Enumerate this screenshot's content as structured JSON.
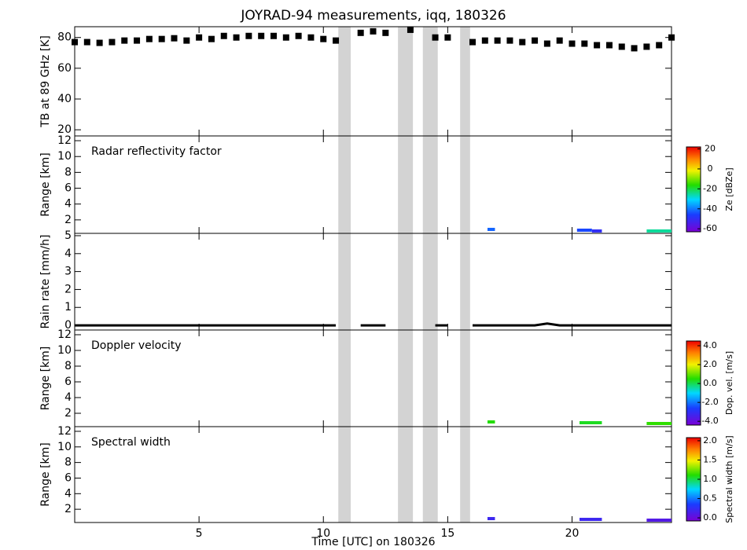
{
  "chart_data": [
    {
      "type": "scatter",
      "title": "JOYRAD-94 measurements, iqq, 180326",
      "ylabel": "TB at 89 GHz [K]",
      "color": "#000000",
      "ylim": [
        16,
        87
      ],
      "yticks": [
        20,
        40,
        60,
        80
      ],
      "gaps": [
        [
          10.6,
          11.1
        ],
        [
          13.0,
          13.6
        ],
        [
          14.0,
          14.6
        ],
        [
          15.5,
          15.9
        ]
      ],
      "x": [
        0,
        0.5,
        1,
        1.5,
        2,
        2.5,
        3,
        3.5,
        4,
        4.5,
        5,
        5.5,
        6,
        6.5,
        7,
        7.5,
        8,
        8.5,
        9,
        9.5,
        10,
        10.5,
        11,
        11.5,
        12,
        12.5,
        13,
        13.5,
        14,
        14.5,
        15,
        15.5,
        16,
        16.5,
        17,
        17.5,
        18,
        18.5,
        19,
        19.5,
        20,
        20.5,
        21,
        21.5,
        22,
        22.5,
        23,
        23.5,
        24
      ],
      "values": [
        77,
        77,
        76.5,
        77,
        78,
        78,
        79,
        79,
        79.5,
        78,
        80,
        79,
        81,
        80,
        81,
        81,
        81,
        80,
        81,
        80,
        79,
        78,
        null,
        83,
        84,
        83,
        null,
        85,
        null,
        80,
        80,
        null,
        77,
        78,
        78,
        78,
        77,
        78,
        76,
        78,
        76,
        76,
        75,
        75,
        74,
        73,
        74,
        75,
        80
      ]
    },
    {
      "type": "heatmap",
      "annotation": "Radar reflectivity factor",
      "ylabel": "Range [km]",
      "ylim": [
        0.3,
        12.6
      ],
      "yticks": [
        2,
        4,
        6,
        8,
        10,
        12
      ],
      "colorbar": {
        "label": "Ze [dBZe]",
        "lim": [
          -63,
          22
        ],
        "ticks": [
          20,
          0,
          -20,
          -40,
          -60
        ]
      },
      "cells": [
        {
          "x": [
            16.6,
            16.9
          ],
          "range": 0.8,
          "value": -42
        },
        {
          "x": [
            20.2,
            20.8
          ],
          "range": 0.7,
          "value": -45
        },
        {
          "x": [
            20.8,
            21.2
          ],
          "range": 0.6,
          "value": -50
        },
        {
          "x": [
            23.0,
            24.0
          ],
          "range": 0.6,
          "value": -25
        }
      ]
    },
    {
      "type": "line",
      "ylabel": "Rain rate [mm/h]",
      "color": "#000000",
      "ylim": [
        -0.26,
        5.13
      ],
      "yticks": [
        0,
        1,
        2,
        3,
        4,
        5
      ],
      "x": [
        0,
        0.5,
        1,
        1.5,
        2,
        2.5,
        3,
        3.5,
        4,
        4.5,
        5,
        5.5,
        6,
        6.5,
        7,
        7.5,
        8,
        8.5,
        9,
        9.5,
        10,
        10.5,
        11,
        11.5,
        12,
        12.5,
        13,
        13.5,
        14,
        14.5,
        15,
        15.5,
        16,
        16.5,
        17,
        17.5,
        18,
        18.5,
        19,
        19.5,
        20,
        20.5,
        21,
        21.5,
        22,
        22.5,
        23,
        23.5,
        24
      ],
      "values": [
        0,
        0,
        0,
        0,
        0,
        0,
        0,
        0,
        0,
        0,
        0,
        0,
        0,
        0,
        0,
        0,
        0,
        0,
        0,
        0,
        0,
        0,
        null,
        0,
        0,
        0,
        null,
        0,
        null,
        0,
        0,
        null,
        0,
        0,
        0,
        0,
        0,
        0,
        0.1,
        0,
        0,
        0,
        0,
        0,
        0,
        0,
        0,
        0,
        0
      ]
    },
    {
      "type": "heatmap",
      "annotation": "Doppler velocity",
      "ylabel": "Range [km]",
      "ylim": [
        0.3,
        12.6
      ],
      "yticks": [
        2,
        4,
        6,
        8,
        10,
        12
      ],
      "colorbar": {
        "label": "Dop. vel. [m/s]",
        "lim": [
          -4.4,
          4.5
        ],
        "ticks": [
          {
            "value": 4,
            "label": "4.0"
          },
          {
            "value": 2,
            "label": "2.0"
          },
          {
            "value": 0,
            "label": "0.0"
          },
          {
            "value": -2,
            "label": "-2.0"
          },
          {
            "value": -4,
            "label": "-4.0"
          }
        ]
      },
      "cells": [
        {
          "x": [
            16.6,
            16.9
          ],
          "range": 0.9,
          "value": 0.5
        },
        {
          "x": [
            20.3,
            21.2
          ],
          "range": 0.8,
          "value": 0.3
        },
        {
          "x": [
            23.0,
            24.0
          ],
          "range": 0.7,
          "value": 0.6
        }
      ]
    },
    {
      "type": "heatmap",
      "annotation": "Spectral width",
      "ylabel": "Range [km]",
      "xlabel": "Time [UTC] on 180326",
      "xlim": [
        0,
        24
      ],
      "xticks": [
        5,
        10,
        15,
        20
      ],
      "ylim": [
        0.3,
        12.6
      ],
      "yticks": [
        2,
        4,
        6,
        8,
        10,
        12
      ],
      "colorbar": {
        "label": "Spectral width [m/s]",
        "lim": [
          -0.08,
          2.08
        ],
        "ticks": [
          {
            "value": 2,
            "label": "2.0"
          },
          {
            "value": 1.5,
            "label": "1.5"
          },
          {
            "value": 1,
            "label": "1.0"
          },
          {
            "value": 0.5,
            "label": "0.5"
          },
          {
            "value": 0,
            "label": "0.0"
          }
        ]
      },
      "cells": [
        {
          "x": [
            16.6,
            16.9
          ],
          "range": 0.8,
          "value": 0.2
        },
        {
          "x": [
            20.3,
            21.2
          ],
          "range": 0.7,
          "value": 0.2
        },
        {
          "x": [
            23.0,
            24.0
          ],
          "range": 0.6,
          "value": 0.1
        }
      ]
    }
  ]
}
